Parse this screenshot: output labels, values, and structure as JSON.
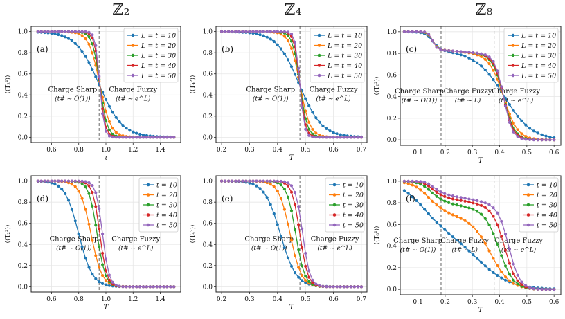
{
  "column_headers": [
    "ℤ₂",
    "ℤ₄",
    "ℤ₈"
  ],
  "colors": [
    "#1f77b4",
    "#ff7f0e",
    "#2ca02c",
    "#d62728",
    "#9467bd"
  ],
  "chart_data": [
    {
      "type": "line",
      "label": "(a)",
      "xlabel": "τ",
      "ylabel": "⟨⟨T₂²⟩⟩",
      "xlim": [
        0.45,
        1.55
      ],
      "ylim": [
        -0.05,
        1.05
      ],
      "xticks": [
        0.6,
        0.8,
        1.0,
        1.2,
        1.4
      ],
      "xticklabels": [
        "0.6",
        "0.8",
        "1.0",
        "1.2",
        "1.4"
      ],
      "yticks": [
        0,
        0.2,
        0.4,
        0.6,
        0.8,
        1.0
      ],
      "yticklabels": [
        "0.0",
        "0.2",
        "0.4",
        "0.6",
        "0.8",
        "1.0"
      ],
      "vlines": [
        0.95
      ],
      "regions": [
        {
          "x": 0.755,
          "y": 0.43,
          "name": "Charge Sharp",
          "scaling": "(t# ∼ O(1))"
        },
        {
          "x": 1.2,
          "y": 0.43,
          "name": "Charge Fuzzy",
          "scaling": "(t# ∼ e^L)"
        }
      ],
      "legend": [
        "L = t = 10",
        "L = t = 20",
        "L = t = 30",
        "L = t = 40",
        "L = t = 50"
      ],
      "legend_position": "top-right",
      "curves": {
        "shape": "sigmoid",
        "x_range": [
          0.5,
          1.5
        ],
        "n_points": 41,
        "centers": [
          0.95,
          0.955,
          0.955,
          0.955,
          0.955
        ],
        "widths": [
          0.085,
          0.04,
          0.027,
          0.02,
          0.016
        ]
      }
    },
    {
      "type": "line",
      "label": "(b)",
      "xlabel": "T",
      "ylabel": "⟨⟨T₄²⟩⟩",
      "xlim": [
        0.18,
        0.72
      ],
      "ylim": [
        -0.05,
        1.05
      ],
      "xticks": [
        0.2,
        0.3,
        0.4,
        0.5,
        0.6,
        0.7
      ],
      "xticklabels": [
        "0.2",
        "0.3",
        "0.4",
        "0.5",
        "0.6",
        "0.7"
      ],
      "yticks": [
        0,
        0.2,
        0.4,
        0.6,
        0.8,
        1.0
      ],
      "yticklabels": [
        "0.0",
        "0.2",
        "0.4",
        "0.6",
        "0.8",
        "1.0"
      ],
      "vlines": [
        0.48
      ],
      "regions": [
        {
          "x": 0.375,
          "y": 0.43,
          "name": "Charge Sharp",
          "scaling": "(t# ∼ O(1))"
        },
        {
          "x": 0.6,
          "y": 0.43,
          "name": "Charge Fuzzy",
          "scaling": "(t# ∼ e^L)"
        }
      ],
      "legend": [
        "L = t = 10",
        "L = t = 20",
        "L = t = 30",
        "L = t = 40",
        "L = t = 50"
      ],
      "legend_position": "top-right",
      "curves": {
        "shape": "sigmoid",
        "x_range": [
          0.2,
          0.7
        ],
        "n_points": 41,
        "centers": [
          0.478,
          0.48,
          0.48,
          0.48,
          0.48
        ],
        "widths": [
          0.04,
          0.018,
          0.013,
          0.01,
          0.008
        ]
      }
    },
    {
      "type": "line",
      "label": "(c)",
      "xlabel": "T",
      "ylabel": "⟨⟨T₈²⟩⟩",
      "xlim": [
        0.035,
        0.625
      ],
      "ylim": [
        -0.05,
        1.05
      ],
      "xticks": [
        0.1,
        0.2,
        0.3,
        0.4,
        0.5,
        0.6
      ],
      "xticklabels": [
        "0.1",
        "0.2",
        "0.3",
        "0.4",
        "0.5",
        "0.6"
      ],
      "yticks": [
        0,
        0.2,
        0.4,
        0.6,
        0.8,
        1.0
      ],
      "yticklabels": [
        "0.0",
        "0.2",
        "0.4",
        "0.6",
        "0.8",
        "1.0"
      ],
      "vlines": [
        0.185,
        0.38
      ],
      "regions": [
        {
          "x": 0.105,
          "y": 0.43,
          "name": "Charge Sharp",
          "scaling": "(t# ∼ O(1))"
        },
        {
          "x": 0.283,
          "y": 0.43,
          "name": "Charge Fuzzy",
          "scaling": "(t# ∼ L)"
        },
        {
          "x": 0.46,
          "y": 0.43,
          "name": "Charge Fuzzy",
          "scaling": "(t# ∼ e^L)"
        }
      ],
      "legend": [
        "L = t = 10",
        "L = t = 20",
        "L = t = 30",
        "L = t = 40",
        "L = t = 50"
      ],
      "legend_position": "top-right",
      "curves": {
        "shape": "two-step",
        "x_range": [
          0.05,
          0.6
        ],
        "n_points": 38,
        "step1": {
          "center": 0.155,
          "height": 0.17,
          "widths": [
            0.014,
            0.01,
            0.009,
            0.008,
            0.008
          ]
        },
        "middle_slope": 0.2,
        "middle_start": 0.19,
        "step2": {
          "centers": [
            0.42,
            0.415,
            0.415,
            0.415,
            0.415
          ],
          "widths": [
            0.05,
            0.026,
            0.02,
            0.018,
            0.016
          ]
        }
      }
    },
    {
      "type": "line",
      "label": "(d)",
      "xlabel": "T",
      "ylabel": "⟨⟨T₂²⟩⟩",
      "xlim": [
        0.45,
        1.55
      ],
      "ylim": [
        -0.05,
        1.05
      ],
      "xticks": [
        0.6,
        0.8,
        1.0,
        1.2,
        1.4
      ],
      "xticklabels": [
        "0.6",
        "0.8",
        "1.0",
        "1.2",
        "1.4"
      ],
      "yticks": [
        0,
        0.2,
        0.4,
        0.6,
        0.8,
        1.0
      ],
      "yticklabels": [
        "0.0",
        "0.2",
        "0.4",
        "0.6",
        "0.8",
        "1.0"
      ],
      "vlines": [
        0.95
      ],
      "regions": [
        {
          "x": 0.765,
          "y": 0.43,
          "name": "Charge Sharp",
          "scaling": "(t# ∼ O(1))"
        },
        {
          "x": 1.22,
          "y": 0.43,
          "name": "Charge Fuzzy",
          "scaling": "(t# ∼ e^L)"
        }
      ],
      "legend": [
        "t = 10",
        "t = 20",
        "t = 30",
        "t = 40",
        "t = 50"
      ],
      "legend_position": "top-right",
      "curves": {
        "shape": "sigmoid",
        "x_range": [
          0.5,
          1.5
        ],
        "n_points": 41,
        "centers": [
          0.8,
          0.89,
          0.935,
          0.955,
          0.975
        ],
        "widths": [
          0.05,
          0.04,
          0.03,
          0.026,
          0.024
        ]
      }
    },
    {
      "type": "line",
      "label": "(e)",
      "xlabel": "T",
      "ylabel": "⟨⟨T₄²⟩⟩",
      "xlim": [
        0.18,
        0.72
      ],
      "ylim": [
        -0.05,
        1.05
      ],
      "xticks": [
        0.2,
        0.3,
        0.4,
        0.5,
        0.6,
        0.7
      ],
      "xticklabels": [
        "0.2",
        "0.3",
        "0.4",
        "0.5",
        "0.6",
        "0.7"
      ],
      "yticks": [
        0,
        0.2,
        0.4,
        0.6,
        0.8,
        1.0
      ],
      "yticklabels": [
        "0.0",
        "0.2",
        "0.4",
        "0.6",
        "0.8",
        "1.0"
      ],
      "vlines": [
        0.48
      ],
      "regions": [
        {
          "x": 0.37,
          "y": 0.43,
          "name": "Charge Sharp",
          "scaling": "(t# ∼ O(1))"
        },
        {
          "x": 0.605,
          "y": 0.43,
          "name": "Charge Fuzzy",
          "scaling": "(t# ∼ e^L)"
        }
      ],
      "legend": [
        "t = 10",
        "t = 20",
        "t = 30",
        "t = 40",
        "t = 50"
      ],
      "legend_position": "top-right",
      "curves": {
        "shape": "sigmoid",
        "x_range": [
          0.2,
          0.7
        ],
        "n_points": 41,
        "centers": [
          0.41,
          0.445,
          0.465,
          0.48,
          0.49
        ],
        "widths": [
          0.028,
          0.02,
          0.016,
          0.014,
          0.013
        ]
      }
    },
    {
      "type": "line",
      "label": "(f)",
      "xlabel": "T",
      "ylabel": "⟨⟨T₈²⟩⟩",
      "xlim": [
        0.035,
        0.625
      ],
      "ylim": [
        -0.05,
        1.05
      ],
      "xticks": [
        0.1,
        0.2,
        0.3,
        0.4,
        0.5,
        0.6
      ],
      "xticklabels": [
        "0.1",
        "0.2",
        "0.3",
        "0.4",
        "0.5",
        "0.6"
      ],
      "yticks": [
        0,
        0.2,
        0.4,
        0.6,
        0.8,
        1.0
      ],
      "yticklabels": [
        "0.0",
        "0.2",
        "0.4",
        "0.6",
        "0.8",
        "1.0"
      ],
      "vlines": [
        0.185,
        0.38
      ],
      "regions": [
        {
          "x": 0.1,
          "y": 0.43,
          "name": "Charge Sharp",
          "scaling": "(t# ∼ O(1))"
        },
        {
          "x": 0.272,
          "y": 0.43,
          "name": "Charge Fuzzy",
          "scaling": "(t# ∼ L)"
        },
        {
          "x": 0.47,
          "y": 0.43,
          "name": "Charge Fuzzy",
          "scaling": "(t# ∼ e^L)"
        }
      ],
      "legend": [
        "t = 10",
        "t = 20",
        "t = 30",
        "t = 40",
        "t = 50"
      ],
      "legend_position": "top-right",
      "curves": {
        "shape": "two-step",
        "x_range": [
          0.05,
          0.6
        ],
        "n_points": 38,
        "step1": {
          "centers": [
            0.12,
            0.14,
            0.15,
            0.155,
            0.16
          ],
          "heights": [
            0.45,
            0.3,
            0.2,
            0.15,
            0.12
          ],
          "widths": [
            0.045,
            0.03,
            0.022,
            0.018,
            0.015
          ]
        },
        "middle_slope": [
          0.3,
          0.35,
          0.38,
          0.42,
          0.45
        ],
        "middle_start": 0.19,
        "step2": {
          "centers": [
            0.33,
            0.37,
            0.4,
            0.42,
            0.435
          ],
          "widths": [
            0.06,
            0.035,
            0.026,
            0.022,
            0.02
          ]
        }
      }
    }
  ]
}
